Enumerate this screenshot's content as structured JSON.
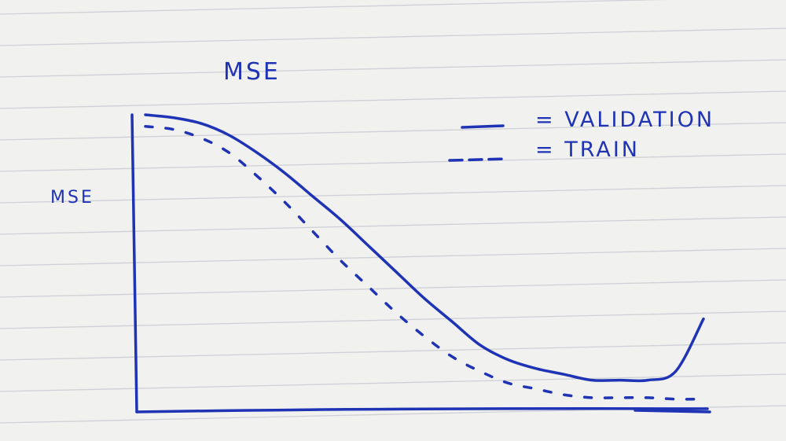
{
  "chart_data": {
    "type": "line",
    "title": "MSE",
    "xlabel": "",
    "ylabel": "MSE",
    "x": [
      0,
      5,
      10,
      15,
      20,
      25,
      30,
      35,
      40,
      45,
      50,
      55,
      60,
      65,
      70,
      75,
      80,
      85,
      90,
      95,
      100
    ],
    "xlim": [
      0,
      100
    ],
    "ylim": [
      0,
      100
    ],
    "grid": false,
    "legend": {
      "placement": "top-right",
      "entries": [
        {
          "label": "= VALIDATION",
          "style": "solid"
        },
        {
          "label": "= TRAIN",
          "style": "dashed"
        }
      ]
    },
    "series": [
      {
        "name": "VALIDATION",
        "style": "solid",
        "values": [
          100,
          99,
          97,
          93,
          87,
          80,
          72,
          64,
          55,
          46,
          37,
          29,
          21,
          16,
          13,
          11,
          9,
          9,
          9,
          12,
          30
        ]
      },
      {
        "name": "TRAIN",
        "style": "dashed",
        "values": [
          96,
          95,
          92,
          87,
          79,
          70,
          60,
          50,
          41,
          32,
          24,
          17,
          12,
          8,
          6,
          4,
          3,
          3,
          3,
          2.5,
          2.5
        ]
      }
    ],
    "colors": {
      "ink": "#1f33b5",
      "paper": "#f1f1ef",
      "rule_line": "#cfd0d6"
    }
  }
}
